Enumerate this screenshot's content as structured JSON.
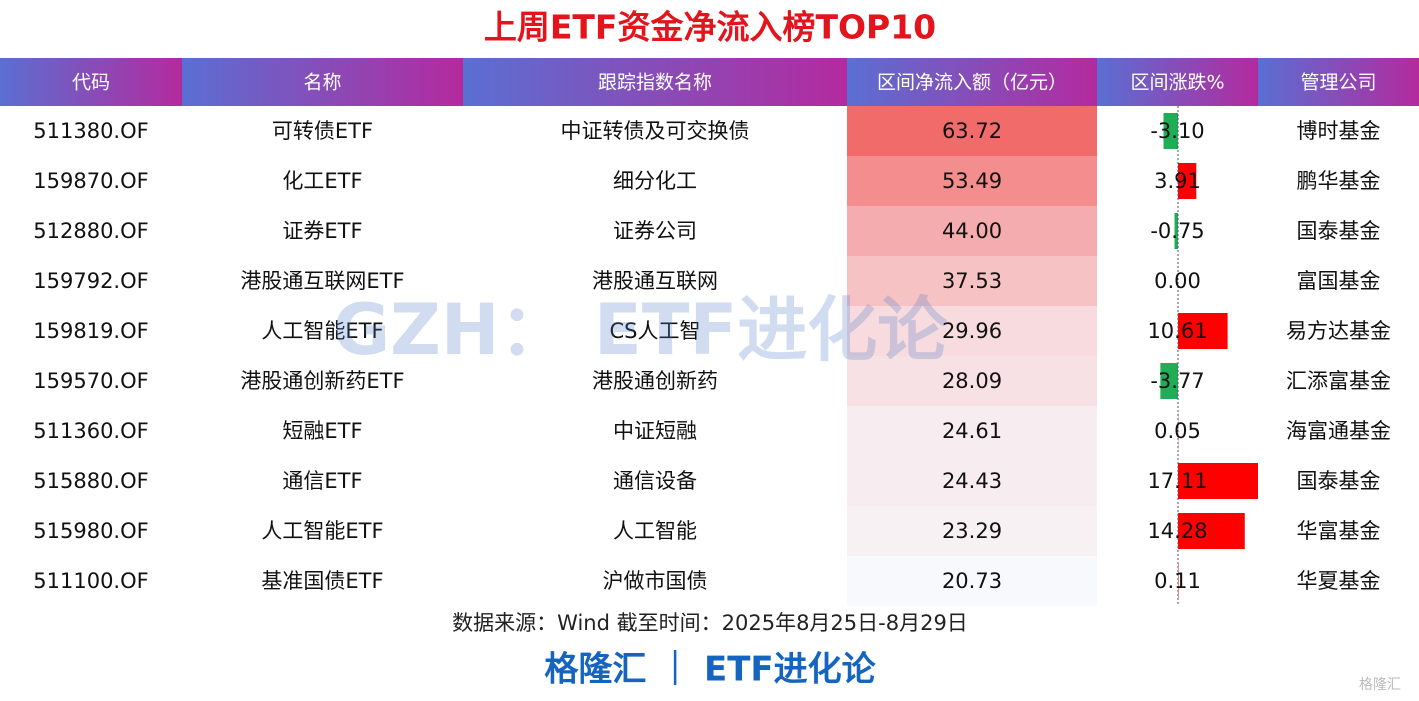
{
  "title": "上周ETF资金净流入榜TOP10",
  "table": {
    "columns": [
      "代码",
      "名称",
      "跟踪指数名称",
      "区间净流入额（亿元）",
      "区间涨跌%",
      "管理公司"
    ],
    "rows": [
      [
        "511380.OF",
        "可转债ETF",
        "中证转债及可交换债",
        "63.72",
        "-3.10",
        "博时基金"
      ],
      [
        "159870.OF",
        "化工ETF",
        "细分化工",
        "53.49",
        "3.91",
        "鹏华基金"
      ],
      [
        "512880.OF",
        "证券ETF",
        "证券公司",
        "44.00",
        "-0.75",
        "国泰基金"
      ],
      [
        "159792.OF",
        "港股通互联网ETF",
        "港股通互联网",
        "37.53",
        "0.00",
        "富国基金"
      ],
      [
        "159819.OF",
        "人工智能ETF",
        "CS人工智",
        "29.96",
        "10.61",
        "易方达基金"
      ],
      [
        "159570.OF",
        "港股通创新药ETF",
        "港股通创新药",
        "28.09",
        "-3.77",
        "汇添富基金"
      ],
      [
        "511360.OF",
        "短融ETF",
        "中证短融",
        "24.61",
        "0.05",
        "海富通基金"
      ],
      [
        "515880.OF",
        "通信ETF",
        "通信设备",
        "24.43",
        "17.11",
        "国泰基金"
      ],
      [
        "515980.OF",
        "人工智能ETF",
        "人工智能",
        "23.29",
        "14.28",
        "华富基金"
      ],
      [
        "511100.OF",
        "基准国债ETF",
        "沪做市国债",
        "20.73",
        "0.11",
        "华夏基金"
      ]
    ]
  },
  "source": "数据来源：Wind 截至时间：2025年8月25日-8月29日",
  "footer": "格隆汇 ｜ ETF进化论",
  "watermark": "GZH： ETF进化论",
  "logo": "格隆汇"
}
